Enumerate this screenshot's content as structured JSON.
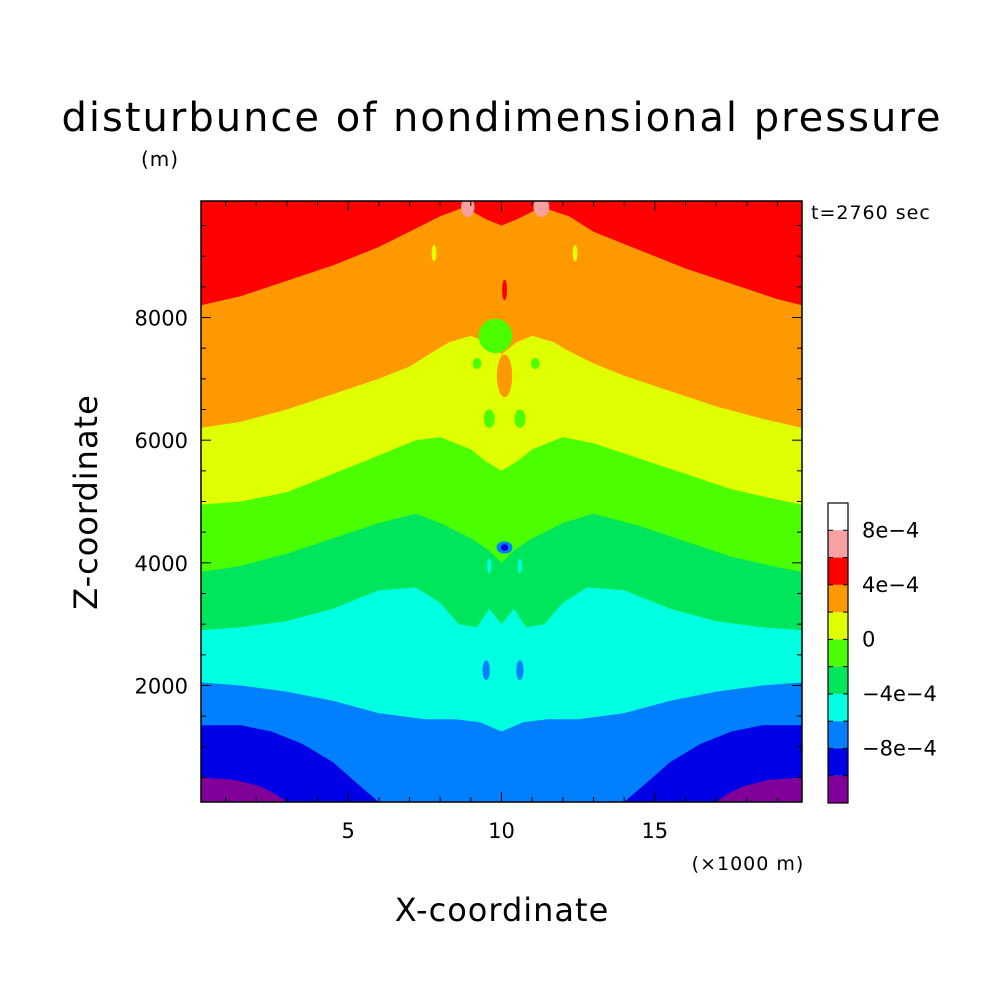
{
  "chart_data": {
    "type": "heatmap",
    "title": "disturbunce of nondimensional pressure",
    "title_unit": "(m)",
    "time_label": "t=2760 sec",
    "xlabel": "X-coordinate",
    "xunit": "(×1000 m)",
    "ylabel": "Z-coordinate",
    "xlim": [
      0.2,
      19.8
    ],
    "ylim": [
      100,
      9900
    ],
    "xticks": [
      {
        "value": 5,
        "label": "5"
      },
      {
        "value": 10,
        "label": "10"
      },
      {
        "value": 15,
        "label": "15"
      }
    ],
    "yticks": [
      {
        "value": 2000,
        "label": "2000"
      },
      {
        "value": 4000,
        "label": "4000"
      },
      {
        "value": 6000,
        "label": "6000"
      },
      {
        "value": 8000,
        "label": "8000"
      }
    ],
    "colorbar": {
      "levels": [
        -0.0012,
        -0.001,
        -0.0008,
        -0.0006,
        -0.0004,
        -0.0002,
        0,
        0.0002,
        0.0004,
        0.0006,
        0.0008,
        0.001
      ],
      "colors": [
        "#800099",
        "#0000e6",
        "#0080ff",
        "#00ffe0",
        "#00e65c",
        "#4cff00",
        "#e0ff00",
        "#ff9900",
        "#ff0000",
        "#f7a1a1"
      ],
      "labels": [
        {
          "value": -0.0008,
          "label": "−8e−4"
        },
        {
          "value": -0.0004,
          "label": "−4e−4"
        },
        {
          "value": 0,
          "label": "0"
        },
        {
          "value": 0.0004,
          "label": "4e−4"
        },
        {
          "value": 0.0008,
          "label": "8e−4"
        }
      ]
    },
    "contour_bands": [
      {
        "color": "#ff0000",
        "boundary": [
          [
            0.2,
            8200
          ],
          [
            1.5,
            8350
          ],
          [
            3,
            8600
          ],
          [
            4.5,
            8850
          ],
          [
            6,
            9150
          ],
          [
            7.2,
            9450
          ],
          [
            8,
            9650
          ],
          [
            8.8,
            9800
          ],
          [
            9.5,
            9600
          ],
          [
            10,
            9500
          ],
          [
            10.5,
            9600
          ],
          [
            11.3,
            9800
          ],
          [
            12.2,
            9650
          ],
          [
            13,
            9400
          ],
          [
            14.5,
            9100
          ],
          [
            16,
            8800
          ],
          [
            17.5,
            8550
          ],
          [
            19,
            8300
          ],
          [
            19.8,
            8200
          ]
        ]
      },
      {
        "color": "#ff9900",
        "boundary": [
          [
            0.2,
            6200
          ],
          [
            1.5,
            6300
          ],
          [
            3,
            6500
          ],
          [
            4.5,
            6750
          ],
          [
            6,
            7000
          ],
          [
            7,
            7200
          ],
          [
            7.8,
            7450
          ],
          [
            8.3,
            7600
          ],
          [
            9,
            7700
          ],
          [
            9.5,
            7600
          ],
          [
            10,
            7400
          ],
          [
            10.5,
            7600
          ],
          [
            11,
            7700
          ],
          [
            11.7,
            7600
          ],
          [
            12.2,
            7450
          ],
          [
            13,
            7250
          ],
          [
            14,
            7050
          ],
          [
            15.5,
            6800
          ],
          [
            17,
            6550
          ],
          [
            18.5,
            6350
          ],
          [
            19.8,
            6200
          ]
        ]
      },
      {
        "color": "#e0ff00",
        "boundary": [
          [
            0.2,
            4950
          ],
          [
            1.5,
            5000
          ],
          [
            3,
            5150
          ],
          [
            4.5,
            5450
          ],
          [
            6,
            5750
          ],
          [
            7.2,
            6000
          ],
          [
            8,
            6050
          ],
          [
            9,
            5850
          ],
          [
            9.5,
            5650
          ],
          [
            10,
            5500
          ],
          [
            10.5,
            5650
          ],
          [
            11,
            5850
          ],
          [
            12,
            6050
          ],
          [
            13,
            5950
          ],
          [
            14.5,
            5700
          ],
          [
            16,
            5450
          ],
          [
            17.5,
            5200
          ],
          [
            18.8,
            5050
          ],
          [
            19.8,
            4950
          ]
        ]
      },
      {
        "color": "#4cff00",
        "boundary": [
          [
            0.2,
            3850
          ],
          [
            1.5,
            3950
          ],
          [
            3,
            4150
          ],
          [
            4.5,
            4400
          ],
          [
            6,
            4650
          ],
          [
            7.2,
            4800
          ],
          [
            8,
            4650
          ],
          [
            9,
            4400
          ],
          [
            9.6,
            4200
          ],
          [
            10,
            4000
          ],
          [
            10.4,
            4200
          ],
          [
            11,
            4400
          ],
          [
            12,
            4650
          ],
          [
            13,
            4800
          ],
          [
            14.5,
            4600
          ],
          [
            16,
            4350
          ],
          [
            17.5,
            4100
          ],
          [
            18.8,
            3950
          ],
          [
            19.8,
            3850
          ]
        ]
      },
      {
        "color": "#00e65c",
        "boundary": [
          [
            0.2,
            2900
          ],
          [
            1.5,
            2950
          ],
          [
            3,
            3050
          ],
          [
            4.5,
            3250
          ],
          [
            6,
            3550
          ],
          [
            7.2,
            3600
          ],
          [
            8,
            3350
          ],
          [
            8.6,
            3000
          ],
          [
            9.2,
            2950
          ],
          [
            9.6,
            3250
          ],
          [
            10,
            3000
          ],
          [
            10.4,
            3250
          ],
          [
            10.8,
            2950
          ],
          [
            11.4,
            3000
          ],
          [
            12,
            3350
          ],
          [
            12.8,
            3600
          ],
          [
            14,
            3550
          ],
          [
            15.5,
            3250
          ],
          [
            17,
            3050
          ],
          [
            18.5,
            2950
          ],
          [
            19.8,
            2900
          ]
        ]
      },
      {
        "color": "#00ffe0",
        "boundary": [
          [
            0.2,
            2050
          ],
          [
            1.5,
            2000
          ],
          [
            3,
            1900
          ],
          [
            4.5,
            1750
          ],
          [
            6,
            1550
          ],
          [
            7.5,
            1450
          ],
          [
            8.5,
            1450
          ],
          [
            9.3,
            1400
          ],
          [
            10,
            1250
          ],
          [
            10.7,
            1400
          ],
          [
            11.5,
            1450
          ],
          [
            12.5,
            1450
          ],
          [
            14,
            1550
          ],
          [
            15.5,
            1750
          ],
          [
            17,
            1900
          ],
          [
            18.5,
            2000
          ],
          [
            19.8,
            2050
          ]
        ]
      },
      {
        "color": "#0080ff",
        "boundary": [
          [
            0.2,
            1350
          ],
          [
            1.5,
            1350
          ],
          [
            2.5,
            1250
          ],
          [
            3.5,
            1050
          ],
          [
            4.5,
            750
          ],
          [
            5.3,
            400
          ],
          [
            6,
            100
          ],
          [
            14,
            100
          ],
          [
            14.7,
            400
          ],
          [
            15.5,
            750
          ],
          [
            16.5,
            1050
          ],
          [
            17.5,
            1250
          ],
          [
            18.5,
            1350
          ],
          [
            19.8,
            1350
          ]
        ]
      },
      {
        "color": "#0000e6",
        "boundary": [
          [
            0.2,
            500
          ],
          [
            1.3,
            460
          ],
          [
            2.1,
            360
          ],
          [
            2.6,
            240
          ],
          [
            3,
            100
          ],
          [
            17,
            100
          ],
          [
            17.4,
            240
          ],
          [
            17.9,
            360
          ],
          [
            18.7,
            460
          ],
          [
            19.8,
            500
          ]
        ]
      }
    ],
    "local_features": [
      {
        "x": 8.9,
        "z": 9800,
        "rx": 0.22,
        "rz": 160,
        "color": "#f7a1a1"
      },
      {
        "x": 11.3,
        "z": 9800,
        "rx": 0.26,
        "rz": 160,
        "color": "#f7a1a1"
      },
      {
        "x": 7.8,
        "z": 9050,
        "rx": 0.08,
        "rz": 130,
        "color": "#e0ff00"
      },
      {
        "x": 12.4,
        "z": 9050,
        "rx": 0.08,
        "rz": 130,
        "color": "#e0ff00"
      },
      {
        "x": 10.1,
        "z": 8450,
        "rx": 0.08,
        "rz": 170,
        "color": "#ff0000"
      },
      {
        "x": 9.8,
        "z": 7700,
        "rx": 0.55,
        "rz": 280,
        "color": "#4cff00"
      },
      {
        "x": 9.2,
        "z": 7250,
        "rx": 0.14,
        "rz": 90,
        "color": "#4cff00"
      },
      {
        "x": 11.1,
        "z": 7250,
        "rx": 0.14,
        "rz": 90,
        "color": "#4cff00"
      },
      {
        "x": 10.1,
        "z": 7050,
        "rx": 0.25,
        "rz": 350,
        "color": "#ff9900"
      },
      {
        "x": 9.6,
        "z": 6350,
        "rx": 0.18,
        "rz": 150,
        "color": "#4cff00"
      },
      {
        "x": 10.6,
        "z": 6350,
        "rx": 0.18,
        "rz": 150,
        "color": "#4cff00"
      },
      {
        "x": 10.1,
        "z": 4250,
        "rx": 0.26,
        "rz": 100,
        "color": "#0080ff"
      },
      {
        "x": 10.1,
        "z": 4250,
        "rx": 0.12,
        "rz": 55,
        "color": "#0000e6"
      },
      {
        "x": 9.6,
        "z": 3950,
        "rx": 0.07,
        "rz": 120,
        "color": "#00ffe0"
      },
      {
        "x": 10.6,
        "z": 3950,
        "rx": 0.07,
        "rz": 120,
        "color": "#00ffe0"
      },
      {
        "x": 9.5,
        "z": 2250,
        "rx": 0.12,
        "rz": 160,
        "color": "#0080ff"
      },
      {
        "x": 10.6,
        "z": 2250,
        "rx": 0.12,
        "rz": 160,
        "color": "#0080ff"
      }
    ]
  }
}
